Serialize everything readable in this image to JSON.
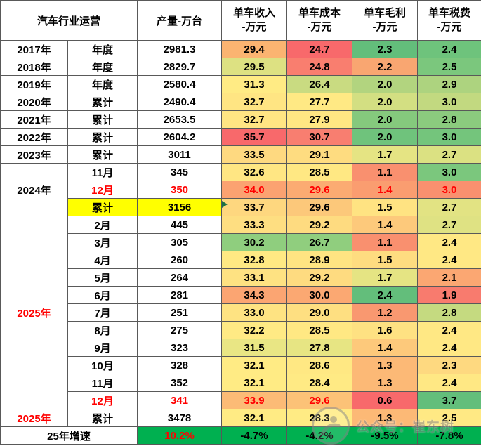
{
  "colors": {
    "border": "#595959",
    "red_text": "#FF0000",
    "highlight_yellow": "#FFFF00",
    "growth_green": "#00B050",
    "marker_green": "#1E7145",
    "scale_red": "#F8696B",
    "scale_yellow": "#FFEB84",
    "scale_green": "#63BE7B"
  },
  "chart_data": {
    "type": "table",
    "title": "汽车行业运营",
    "header": {
      "group": "汽车行业运营",
      "production": "产量-万台",
      "metrics": [
        "单车收入\n-万元",
        "单车成本\n-万元",
        "单车毛利\n-万元",
        "单车税费\n-万元"
      ]
    },
    "rows": [
      {
        "year": {
          "text": "2017年",
          "span": 1
        },
        "period": {
          "text": "年度"
        },
        "production": {
          "v": "2981.3"
        },
        "metrics": [
          {
            "v": "29.4",
            "bg": "#FBB471"
          },
          {
            "v": "24.7",
            "bg": "#F8696B"
          },
          {
            "v": "2.3",
            "bg": "#63BE7B"
          },
          {
            "v": "2.4",
            "bg": "#6EC37C"
          }
        ]
      },
      {
        "year": {
          "text": "2018年",
          "span": 1
        },
        "period": {
          "text": "年度"
        },
        "production": {
          "v": "2829.7"
        },
        "metrics": [
          {
            "v": "29.5",
            "bg": "#DDE182"
          },
          {
            "v": "24.8",
            "bg": "#F97E6F"
          },
          {
            "v": "2.2",
            "bg": "#F9A671"
          },
          {
            "v": "2.5",
            "bg": "#7BC77D"
          }
        ]
      },
      {
        "year": {
          "text": "2019年",
          "span": 1
        },
        "period": {
          "text": "年度"
        },
        "production": {
          "v": "2580.4"
        },
        "metrics": [
          {
            "v": "31.3",
            "bg": "#FFEB84"
          },
          {
            "v": "26.4",
            "bg": "#C9DB81"
          },
          {
            "v": "2.0",
            "bg": "#B2D47F"
          },
          {
            "v": "2.9",
            "bg": "#ADD37F"
          }
        ]
      },
      {
        "year": {
          "text": "2020年",
          "span": 1
        },
        "period": {
          "text": "累计"
        },
        "production": {
          "v": "2490.4"
        },
        "metrics": [
          {
            "v": "32.7",
            "bg": "#FFE583"
          },
          {
            "v": "27.7",
            "bg": "#FFE984"
          },
          {
            "v": "2.0",
            "bg": "#D3DF82"
          },
          {
            "v": "3.0",
            "bg": "#C2D980"
          }
        ]
      },
      {
        "year": {
          "text": "2021年",
          "span": 1
        },
        "period": {
          "text": "累计"
        },
        "production": {
          "v": "2653.5"
        },
        "metrics": [
          {
            "v": "32.7",
            "bg": "#FFE583"
          },
          {
            "v": "27.9",
            "bg": "#FFE783"
          },
          {
            "v": "2.0",
            "bg": "#85C97D"
          },
          {
            "v": "2.8",
            "bg": "#8BCB7E"
          }
        ]
      },
      {
        "year": {
          "text": "2022年",
          "span": 1
        },
        "period": {
          "text": "累计"
        },
        "production": {
          "v": "2604.2"
        },
        "metrics": [
          {
            "v": "35.7",
            "bg": "#F8696B"
          },
          {
            "v": "30.7",
            "bg": "#F87E70"
          },
          {
            "v": "2.0",
            "bg": "#6FC37C"
          },
          {
            "v": "3.0",
            "bg": "#74C57C"
          }
        ]
      },
      {
        "year": {
          "text": "2023年",
          "span": 1
        },
        "period": {
          "text": "累计"
        },
        "production": {
          "v": "3011"
        },
        "metrics": [
          {
            "v": "33.5",
            "bg": "#FED980"
          },
          {
            "v": "29.1",
            "bg": "#FEDC80"
          },
          {
            "v": "1.7",
            "bg": "#E5E483"
          },
          {
            "v": "2.7",
            "bg": "#DBE182"
          }
        ]
      },
      {
        "year": {
          "text": "2024年",
          "span": 3
        },
        "period": {
          "text": "11月"
        },
        "production": {
          "v": "345"
        },
        "metrics": [
          {
            "v": "32.6",
            "bg": "#FFE683"
          },
          {
            "v": "28.5",
            "bg": "#FFE883"
          },
          {
            "v": "1.1",
            "bg": "#F9906F"
          },
          {
            "v": "3.0",
            "bg": "#7BC77D"
          }
        ]
      },
      {
        "period": {
          "text": "12月",
          "red": true
        },
        "production": {
          "v": "350",
          "red": true
        },
        "metrics": [
          {
            "v": "34.0",
            "bg": "#FBA271",
            "red": true
          },
          {
            "v": "29.6",
            "bg": "#FBAB72",
            "red": true
          },
          {
            "v": "1.4",
            "bg": "#FA9D70",
            "red": true
          },
          {
            "v": "3.0",
            "bg": "#F9906F",
            "red": true
          }
        ]
      },
      {
        "period": {
          "text": "累计",
          "bg": "#FFFF00"
        },
        "production": {
          "v": "3156",
          "bg": "#FFFF00"
        },
        "metrics": [
          {
            "v": "33.7",
            "bg": "#FED77F",
            "marker": true
          },
          {
            "v": "29.6",
            "bg": "#FCC87A"
          },
          {
            "v": "1.5",
            "bg": "#FFE382"
          },
          {
            "v": "2.7",
            "bg": "#E2E383"
          }
        ]
      },
      {
        "year": {
          "text": "2025年",
          "span": 11,
          "red": true
        },
        "period": {
          "text": "2月"
        },
        "production": {
          "v": "445"
        },
        "metrics": [
          {
            "v": "33.3",
            "bg": "#FEDE81"
          },
          {
            "v": "29.2",
            "bg": "#FEDB80"
          },
          {
            "v": "1.4",
            "bg": "#FDC97B"
          },
          {
            "v": "2.7",
            "bg": "#DFE283"
          }
        ]
      },
      {
        "period": {
          "text": "3月"
        },
        "production": {
          "v": "305"
        },
        "metrics": [
          {
            "v": "30.2",
            "bg": "#8FCE7E"
          },
          {
            "v": "26.7",
            "bg": "#90CE7E"
          },
          {
            "v": "1.1",
            "bg": "#F9906F"
          },
          {
            "v": "2.4",
            "bg": "#FFE884"
          }
        ]
      },
      {
        "period": {
          "text": "4月"
        },
        "production": {
          "v": "260"
        },
        "metrics": [
          {
            "v": "32.8",
            "bg": "#FFE983"
          },
          {
            "v": "28.9",
            "bg": "#FEE482"
          },
          {
            "v": "1.5",
            "bg": "#FEDC80"
          },
          {
            "v": "2.4",
            "bg": "#FFE884"
          }
        ]
      },
      {
        "period": {
          "text": "5月"
        },
        "production": {
          "v": "264"
        },
        "metrics": [
          {
            "v": "33.1",
            "bg": "#FEE282"
          },
          {
            "v": "29.2",
            "bg": "#FEDB80"
          },
          {
            "v": "1.7",
            "bg": "#E5E483"
          },
          {
            "v": "2.1",
            "bg": "#FBA772"
          }
        ]
      },
      {
        "period": {
          "text": "6月"
        },
        "production": {
          "v": "281"
        },
        "metrics": [
          {
            "v": "34.3",
            "bg": "#FBA572"
          },
          {
            "v": "30.0",
            "bg": "#FBA872"
          },
          {
            "v": "2.4",
            "bg": "#63BE7B"
          },
          {
            "v": "1.9",
            "bg": "#F87B6E"
          }
        ]
      },
      {
        "period": {
          "text": "7月"
        },
        "production": {
          "v": "251"
        },
        "metrics": [
          {
            "v": "33.0",
            "bg": "#FEE382"
          },
          {
            "v": "29.0",
            "bg": "#FEDF81"
          },
          {
            "v": "1.2",
            "bg": "#F99870"
          },
          {
            "v": "2.8",
            "bg": "#C5DA80"
          }
        ]
      },
      {
        "period": {
          "text": "8月"
        },
        "production": {
          "v": "275"
        },
        "metrics": [
          {
            "v": "32.2",
            "bg": "#FFEA84"
          },
          {
            "v": "28.5",
            "bg": "#FFE883"
          },
          {
            "v": "1.6",
            "bg": "#FEE182"
          },
          {
            "v": "2.4",
            "bg": "#FFE884"
          }
        ]
      },
      {
        "period": {
          "text": "9月"
        },
        "production": {
          "v": "323"
        },
        "metrics": [
          {
            "v": "31.5",
            "bg": "#E9E684"
          },
          {
            "v": "27.8",
            "bg": "#E7E583"
          },
          {
            "v": "1.4",
            "bg": "#FDC97B"
          },
          {
            "v": "2.4",
            "bg": "#FFE884"
          }
        ]
      },
      {
        "period": {
          "text": "10月"
        },
        "production": {
          "v": "328"
        },
        "metrics": [
          {
            "v": "32.1",
            "bg": "#FFEB84"
          },
          {
            "v": "28.6",
            "bg": "#FFE883"
          },
          {
            "v": "1.3",
            "bg": "#FCB976"
          },
          {
            "v": "2.3",
            "bg": "#FED980"
          }
        ]
      },
      {
        "period": {
          "text": "11月"
        },
        "production": {
          "v": "352"
        },
        "metrics": [
          {
            "v": "32.1",
            "bg": "#FFEB84"
          },
          {
            "v": "28.4",
            "bg": "#FFEA84"
          },
          {
            "v": "1.3",
            "bg": "#FCB976"
          },
          {
            "v": "2.4",
            "bg": "#FFE884"
          }
        ]
      },
      {
        "period": {
          "text": "12月",
          "red": true
        },
        "production": {
          "v": "341",
          "red": true
        },
        "metrics": [
          {
            "v": "33.9",
            "bg": "#FCBB76",
            "red": true
          },
          {
            "v": "29.6",
            "bg": "#FCC277",
            "red": true
          },
          {
            "v": "0.6",
            "bg": "#F8696B"
          },
          {
            "v": "3.7",
            "bg": "#63BE7B"
          }
        ]
      },
      {
        "year": {
          "text": "2025年",
          "span": 1,
          "red": true
        },
        "period": {
          "text": "累计"
        },
        "production": {
          "v": "3478"
        },
        "metrics": [
          {
            "v": "32.1",
            "bg": "#FFEB84"
          },
          {
            "v": "28.3",
            "bg": "#FFEB84"
          },
          {
            "v": "1.3",
            "bg": "#FCB976"
          },
          {
            "v": "2.5",
            "bg": "#FFE984"
          }
        ]
      }
    ],
    "growth_row": {
      "label": "25年增速",
      "production": {
        "v": "10.2%",
        "bg": "#00B050",
        "red": true
      },
      "metrics": [
        {
          "v": "-4.7%",
          "bg": "#00B050"
        },
        {
          "v": "-4.2%",
          "bg": "#00B050"
        },
        {
          "v": "-9.5%",
          "bg": "#00B050"
        },
        {
          "v": "-7.8%",
          "bg": "#00B050"
        }
      ]
    }
  },
  "watermark": {
    "text": "公众号：崔东树"
  }
}
